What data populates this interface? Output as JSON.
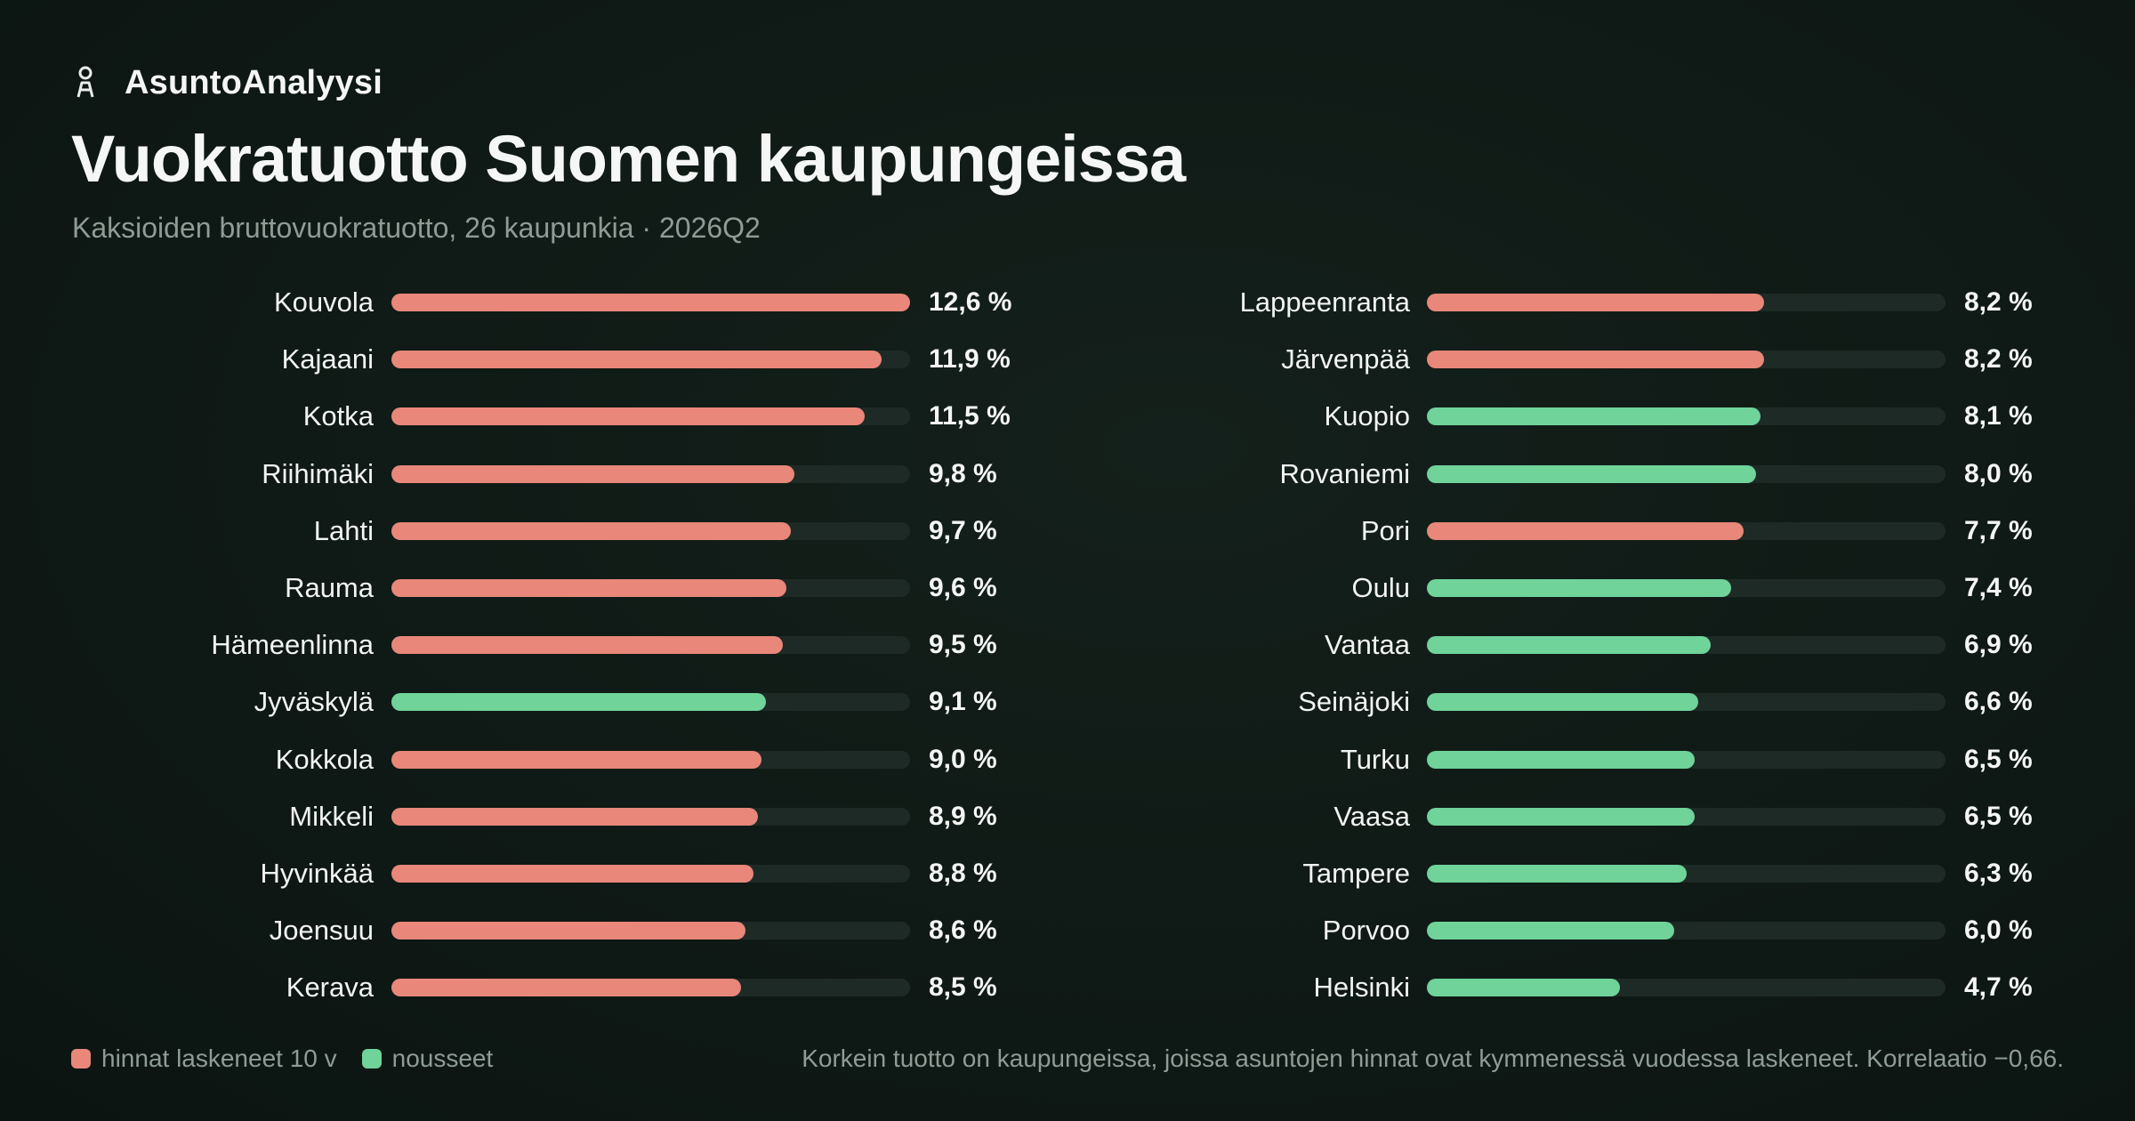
{
  "brand": {
    "name": "AsuntoAnalyysi",
    "icon": "person-pin-icon"
  },
  "title": "Vuokratuotto Suomen kaupungeissa",
  "subtitle": "Kaksioiden bruttovuokratuotto, 26 kaupunkia · 2026Q2",
  "colors": {
    "down": "#e8877a",
    "up": "#6fd39a",
    "track": "#1e2a25"
  },
  "legend": {
    "down_label": "hinnat laskeneet 10 v",
    "up_label": "nousseet"
  },
  "note": "Korkein tuotto on kaupungeissa, joissa asuntojen hinnat ovat kymmenessä vuodessa laskeneet. Korrelaatio −0,66.",
  "chart_data": {
    "type": "bar",
    "orientation": "horizontal",
    "xlim": [
      0,
      12.6
    ],
    "unit": "%",
    "grid": false,
    "legend_position": "bottom-left",
    "series_names": {
      "down": "hinnat laskeneet 10 v",
      "up": "nousseet"
    },
    "rows": [
      {
        "city": "Kouvola",
        "value": 12.6,
        "label": "12,6 %",
        "trend": "down"
      },
      {
        "city": "Kajaani",
        "value": 11.9,
        "label": "11,9 %",
        "trend": "down"
      },
      {
        "city": "Kotka",
        "value": 11.5,
        "label": "11,5 %",
        "trend": "down"
      },
      {
        "city": "Riihimäki",
        "value": 9.8,
        "label": "9,8 %",
        "trend": "down"
      },
      {
        "city": "Lahti",
        "value": 9.7,
        "label": "9,7 %",
        "trend": "down"
      },
      {
        "city": "Rauma",
        "value": 9.6,
        "label": "9,6 %",
        "trend": "down"
      },
      {
        "city": "Hämeenlinna",
        "value": 9.5,
        "label": "9,5 %",
        "trend": "down"
      },
      {
        "city": "Jyväskylä",
        "value": 9.1,
        "label": "9,1 %",
        "trend": "up"
      },
      {
        "city": "Kokkola",
        "value": 9.0,
        "label": "9,0 %",
        "trend": "down"
      },
      {
        "city": "Mikkeli",
        "value": 8.9,
        "label": "8,9 %",
        "trend": "down"
      },
      {
        "city": "Hyvinkää",
        "value": 8.8,
        "label": "8,8 %",
        "trend": "down"
      },
      {
        "city": "Joensuu",
        "value": 8.6,
        "label": "8,6 %",
        "trend": "down"
      },
      {
        "city": "Kerava",
        "value": 8.5,
        "label": "8,5 %",
        "trend": "down"
      },
      {
        "city": "Lappeenranta",
        "value": 8.2,
        "label": "8,2 %",
        "trend": "down"
      },
      {
        "city": "Järvenpää",
        "value": 8.2,
        "label": "8,2 %",
        "trend": "down"
      },
      {
        "city": "Kuopio",
        "value": 8.1,
        "label": "8,1 %",
        "trend": "up"
      },
      {
        "city": "Rovaniemi",
        "value": 8.0,
        "label": "8,0 %",
        "trend": "up"
      },
      {
        "city": "Pori",
        "value": 7.7,
        "label": "7,7 %",
        "trend": "down"
      },
      {
        "city": "Oulu",
        "value": 7.4,
        "label": "7,4 %",
        "trend": "up"
      },
      {
        "city": "Vantaa",
        "value": 6.9,
        "label": "6,9 %",
        "trend": "up"
      },
      {
        "city": "Seinäjoki",
        "value": 6.6,
        "label": "6,6 %",
        "trend": "up"
      },
      {
        "city": "Turku",
        "value": 6.5,
        "label": "6,5 %",
        "trend": "up"
      },
      {
        "city": "Vaasa",
        "value": 6.5,
        "label": "6,5 %",
        "trend": "up"
      },
      {
        "city": "Tampere",
        "value": 6.3,
        "label": "6,3 %",
        "trend": "up"
      },
      {
        "city": "Porvoo",
        "value": 6.0,
        "label": "6,0 %",
        "trend": "up"
      },
      {
        "city": "Helsinki",
        "value": 4.7,
        "label": "4,7 %",
        "trend": "up"
      }
    ]
  }
}
